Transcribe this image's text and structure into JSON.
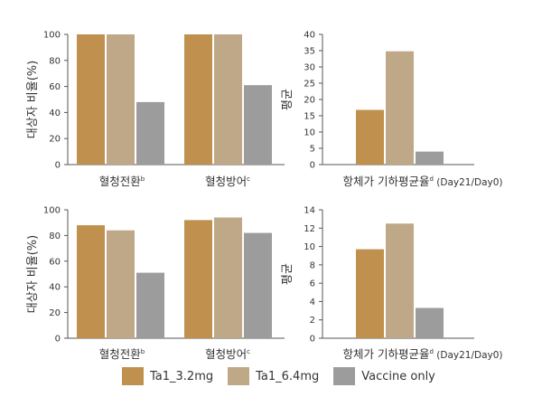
{
  "colors": {
    "ta1_32": "#C0914E",
    "ta1_64": "#BEA887",
    "vaccine": "#9C9C9C",
    "axis": "#555555",
    "text": "#333333"
  },
  "legend": [
    {
      "label": "Ta1_3.2mg",
      "color": "#C0914E"
    },
    {
      "label": "Ta1_6.4mg",
      "color": "#BEA887"
    },
    {
      "label": "Vaccine only",
      "color": "#9C9C9C"
    }
  ],
  "chart_data": [
    {
      "type": "bar",
      "ylabel": "대상자 비율(%)",
      "ylim": [
        0,
        100
      ],
      "yticks": [
        0,
        20,
        40,
        60,
        80,
        100
      ],
      "categories": [
        {
          "label": "혈청전환",
          "sup": "b"
        },
        {
          "label": "혈청방어",
          "sup": "c"
        }
      ],
      "series": [
        {
          "name": "Ta1_3.2mg",
          "values": [
            100,
            100
          ]
        },
        {
          "name": "Ta1_6.4mg",
          "values": [
            100,
            100
          ]
        },
        {
          "name": "Vaccine only",
          "values": [
            48,
            61
          ]
        }
      ]
    },
    {
      "type": "bar",
      "ylabel": "평균",
      "ylim": [
        0,
        40
      ],
      "yticks": [
        0,
        5,
        10,
        15,
        20,
        25,
        30,
        35,
        40
      ],
      "categories": [
        {
          "label": "항체가 기하평균율",
          "sup": "d",
          "suffix": " (Day21/Day0)"
        }
      ],
      "series": [
        {
          "name": "Ta1_3.2mg",
          "values": [
            16.8
          ]
        },
        {
          "name": "Ta1_6.4mg",
          "values": [
            34.8
          ]
        },
        {
          "name": "Vaccine only",
          "values": [
            4
          ]
        }
      ]
    },
    {
      "type": "bar",
      "ylabel": "대상자 비율(%)",
      "ylim": [
        0,
        100
      ],
      "yticks": [
        0,
        20,
        40,
        60,
        80,
        100
      ],
      "categories": [
        {
          "label": "혈청전환",
          "sup": "b"
        },
        {
          "label": "혈청방어",
          "sup": "c"
        }
      ],
      "series": [
        {
          "name": "Ta1_3.2mg",
          "values": [
            88,
            92
          ]
        },
        {
          "name": "Ta1_6.4mg",
          "values": [
            84,
            94
          ]
        },
        {
          "name": "Vaccine only",
          "values": [
            51,
            82
          ]
        }
      ]
    },
    {
      "type": "bar",
      "ylabel": "평균",
      "ylim": [
        0,
        14
      ],
      "yticks": [
        0,
        2,
        4,
        6,
        8,
        10,
        12,
        14
      ],
      "categories": [
        {
          "label": "항체가 기하평균율",
          "sup": "d",
          "suffix": " (Day21/Day0)"
        }
      ],
      "series": [
        {
          "name": "Ta1_3.2mg",
          "values": [
            9.7
          ]
        },
        {
          "name": "Ta1_6.4mg",
          "values": [
            12.5
          ]
        },
        {
          "name": "Vaccine only",
          "values": [
            3.3
          ]
        }
      ]
    }
  ]
}
